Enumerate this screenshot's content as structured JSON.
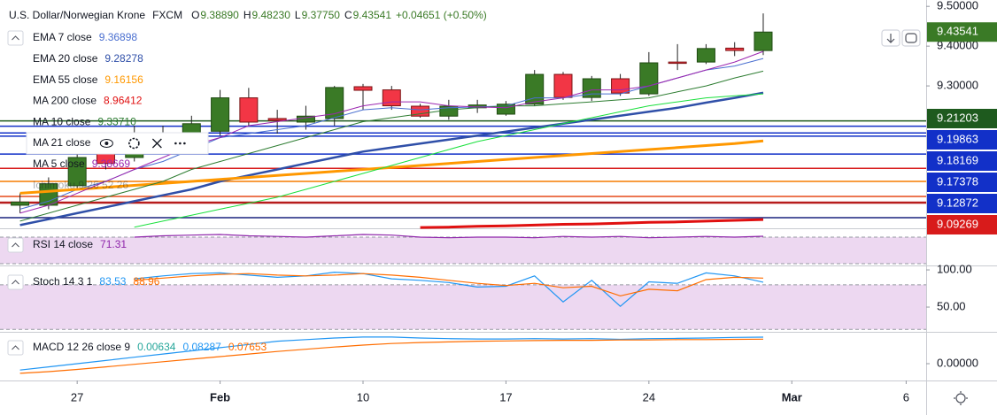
{
  "header": {
    "symbol": "U.S. Dollar/Norwegian Krone",
    "source": "FXCM",
    "ohlc": [
      {
        "key": "O",
        "value": "9.38890"
      },
      {
        "key": "H",
        "value": "9.48230"
      },
      {
        "key": "L",
        "value": "9.37750"
      },
      {
        "key": "C",
        "value": "9.43541"
      }
    ],
    "change": "+0.04651 (+0.50%)"
  },
  "chart_data": [
    {
      "type": "candlestick",
      "x": [
        0,
        1,
        2,
        3,
        4,
        5,
        6,
        7,
        8,
        9,
        10,
        11,
        12,
        13,
        14,
        15,
        16,
        17,
        18,
        19,
        20,
        21,
        22,
        23,
        24,
        25,
        26
      ],
      "open": [
        9.0,
        9.0,
        9.049,
        9.135,
        9.12,
        9.165,
        9.182,
        9.186,
        9.27,
        9.218,
        9.209,
        9.218,
        9.298,
        9.29,
        9.249,
        9.224,
        9.245,
        9.229,
        9.254,
        9.329,
        9.271,
        9.318,
        9.28,
        9.36,
        9.36,
        9.395,
        9.3889
      ],
      "high": [
        9.03,
        9.07,
        9.14,
        9.15,
        9.2,
        9.2,
        9.225,
        9.29,
        9.295,
        9.24,
        9.25,
        9.3,
        9.305,
        9.3,
        9.255,
        9.265,
        9.265,
        9.262,
        9.34,
        9.335,
        9.325,
        9.33,
        9.385,
        9.405,
        9.405,
        9.41,
        9.4823
      ],
      "low": [
        8.98,
        8.99,
        9.04,
        9.09,
        9.11,
        9.15,
        9.17,
        9.175,
        9.2,
        9.18,
        9.19,
        9.2,
        9.24,
        9.24,
        9.22,
        9.215,
        9.232,
        9.225,
        9.25,
        9.265,
        9.262,
        9.275,
        9.275,
        9.34,
        9.355,
        9.375,
        9.3775
      ],
      "close": [
        9.008,
        9.054,
        9.12,
        9.105,
        9.16,
        9.18,
        9.205,
        9.27,
        9.209,
        9.213,
        9.224,
        9.296,
        9.289,
        9.25,
        9.224,
        9.249,
        9.252,
        9.254,
        9.329,
        9.271,
        9.318,
        9.282,
        9.358,
        9.358,
        9.394,
        9.389,
        9.43541
      ],
      "up_color": "#3a7a26",
      "down_color": "#f23645",
      "xlim": [
        -0.7,
        31.7
      ],
      "xticks": [
        {
          "value": 2,
          "label": "27"
        },
        {
          "value": 7,
          "label": "Feb"
        },
        {
          "value": 12,
          "label": "10"
        },
        {
          "value": 17,
          "label": "17"
        },
        {
          "value": 22,
          "label": "24"
        },
        {
          "value": 27,
          "label": "Mar"
        },
        {
          "value": 31,
          "label": "6"
        }
      ],
      "ylim": [
        8.942,
        9.516
      ],
      "yticks": [
        {
          "value": 9.5,
          "label": "9.50000"
        },
        {
          "value": 9.4,
          "label": "9.40000"
        },
        {
          "value": 9.3,
          "label": "9.30000"
        }
      ],
      "levels": [
        {
          "value": 9.21203,
          "color": "#1e5a1e"
        },
        {
          "value": 9.19863,
          "color": "#1230c8"
        },
        {
          "value": 9.18169,
          "color": "#1230c8"
        },
        {
          "value": 9.17378,
          "color": "#1230c8"
        },
        {
          "value": 9.12872,
          "color": "#1230c8"
        },
        {
          "value": 9.09269,
          "color": "#d81b1b"
        }
      ],
      "series": [
        {
          "name": "EMA 7 close",
          "color": "#4a6fd0",
          "width": 1,
          "values": [
            8.99,
            9.01,
            9.04,
            9.06,
            9.09,
            9.11,
            9.14,
            9.17,
            9.18,
            9.19,
            9.2,
            9.22,
            9.24,
            9.245,
            9.24,
            9.245,
            9.247,
            9.25,
            9.27,
            9.27,
            9.28,
            9.28,
            9.3,
            9.32,
            9.34,
            9.35,
            9.36898
          ]
        },
        {
          "name": "EMA 20 close",
          "color": "#2f4fa8",
          "width": 2.5,
          "values": [
            8.95,
            8.965,
            8.98,
            8.995,
            9.01,
            9.025,
            9.04,
            9.06,
            9.075,
            9.09,
            9.105,
            9.12,
            9.135,
            9.145,
            9.155,
            9.165,
            9.175,
            9.185,
            9.195,
            9.205,
            9.215,
            9.225,
            9.235,
            9.245,
            9.258,
            9.27,
            9.28278
          ]
        },
        {
          "name": "EMA 55 close",
          "color": "#ff9800",
          "width": 3,
          "values": [
            9.03,
            9.035,
            9.04,
            9.045,
            9.05,
            9.055,
            9.06,
            9.065,
            9.07,
            9.075,
            9.08,
            9.085,
            9.09,
            9.095,
            9.1,
            9.105,
            9.11,
            9.115,
            9.12,
            9.125,
            9.13,
            9.135,
            9.14,
            9.145,
            9.15,
            9.155,
            9.16156
          ]
        },
        {
          "name": "MA 200 close",
          "color": "#e01010",
          "width": 3,
          "values": [
            null,
            null,
            null,
            null,
            null,
            null,
            null,
            null,
            null,
            null,
            null,
            null,
            null,
            null,
            8.944,
            8.945,
            8.947,
            8.948,
            8.95,
            8.952,
            8.953,
            8.955,
            8.957,
            8.958,
            8.96,
            8.962,
            8.96412
          ]
        },
        {
          "name": "MA 10 close",
          "color": "#2e7d32",
          "width": 1,
          "last_label": "9.33710",
          "values": [
            8.96,
            8.98,
            9.0,
            9.02,
            9.04,
            9.06,
            9.09,
            9.11,
            9.13,
            9.15,
            9.17,
            9.19,
            9.21,
            9.22,
            9.23,
            9.24,
            9.245,
            9.25,
            9.25,
            9.255,
            9.26,
            9.265,
            9.27,
            9.285,
            9.3,
            9.32,
            9.3371
          ]
        },
        {
          "name": "MA 21 close",
          "color": "#19e03c",
          "width": 1,
          "values": [
            null,
            null,
            null,
            null,
            8.945,
            8.96,
            8.975,
            8.99,
            9.005,
            9.02,
            9.04,
            9.06,
            9.08,
            9.1,
            9.12,
            9.14,
            9.16,
            9.175,
            9.19,
            9.205,
            9.22,
            9.235,
            9.25,
            9.26,
            9.27,
            9.275,
            9.28
          ]
        },
        {
          "name": "MA 5 close",
          "color": "#9c27b0",
          "width": 1,
          "values": [
            8.98,
            9.0,
            9.03,
            9.06,
            9.09,
            9.12,
            9.15,
            9.17,
            9.2,
            9.21,
            9.22,
            9.23,
            9.25,
            9.26,
            9.26,
            9.25,
            9.247,
            9.245,
            9.26,
            9.27,
            9.29,
            9.29,
            9.3,
            9.32,
            9.34,
            9.36,
            9.38669
          ]
        }
      ],
      "hidden_indicator": "Ichimoku 9 26 52 26"
    },
    {
      "type": "line",
      "title": "RSI 14 close",
      "ylim": [
        27.3,
        83.3
      ],
      "bands": [
        30,
        70
      ],
      "band_color": "#e1bee7",
      "series": [
        {
          "color": "#8e24aa",
          "values": [
            null,
            null,
            null,
            null,
            70,
            72,
            73,
            74,
            72,
            71,
            70,
            72,
            74,
            73,
            70,
            69,
            70,
            70,
            69,
            71,
            70,
            71,
            69,
            70,
            71,
            70,
            71.31
          ]
        }
      ]
    },
    {
      "type": "line",
      "title": "Stoch 14 3 1",
      "ylim": [
        16.7,
        106
      ],
      "bands": [
        20,
        80
      ],
      "band_color": "#e1bee7",
      "yticks": [
        {
          "value": 100,
          "label": "100.00"
        },
        {
          "value": 50,
          "label": "50.00"
        }
      ],
      "series": [
        {
          "color": "#2196f3",
          "values": [
            null,
            null,
            null,
            null,
            88,
            92,
            95,
            96,
            93,
            90,
            92,
            97,
            95,
            88,
            86,
            83,
            77,
            78,
            92,
            57,
            86,
            51,
            84,
            82,
            96,
            92,
            83.53
          ]
        },
        {
          "color": "#ff6d00",
          "values": [
            null,
            null,
            null,
            null,
            86,
            89,
            92,
            94,
            95,
            93,
            92,
            93,
            95,
            93,
            90,
            86,
            82,
            79,
            82,
            76,
            78,
            65,
            74,
            72,
            87,
            90,
            88.96
          ]
        }
      ]
    },
    {
      "type": "line",
      "title": "MACD 12 26 close 9",
      "ylim": [
        -0.0525,
        0.0994
      ],
      "yticks": [
        {
          "value": 0,
          "label": "0.00000"
        }
      ],
      "histogram_value": 0.00634,
      "histogram_color": "#26a69a",
      "series": [
        {
          "color": "#2196f3",
          "values": [
            -0.02,
            -0.01,
            0.0,
            0.01,
            0.02,
            0.03,
            0.04,
            0.05,
            0.06,
            0.07,
            0.075,
            0.08,
            0.083,
            0.083,
            0.08,
            0.078,
            0.077,
            0.077,
            0.078,
            0.077,
            0.078,
            0.076,
            0.078,
            0.079,
            0.08,
            0.082,
            0.08287
          ]
        },
        {
          "color": "#ff6d00",
          "values": [
            -0.03,
            -0.025,
            -0.018,
            -0.01,
            -0.002,
            0.006,
            0.014,
            0.022,
            0.03,
            0.038,
            0.045,
            0.052,
            0.058,
            0.063,
            0.066,
            0.068,
            0.07,
            0.071,
            0.072,
            0.073,
            0.073,
            0.074,
            0.074,
            0.075,
            0.075,
            0.076,
            0.07653
          ]
        }
      ]
    }
  ]
}
